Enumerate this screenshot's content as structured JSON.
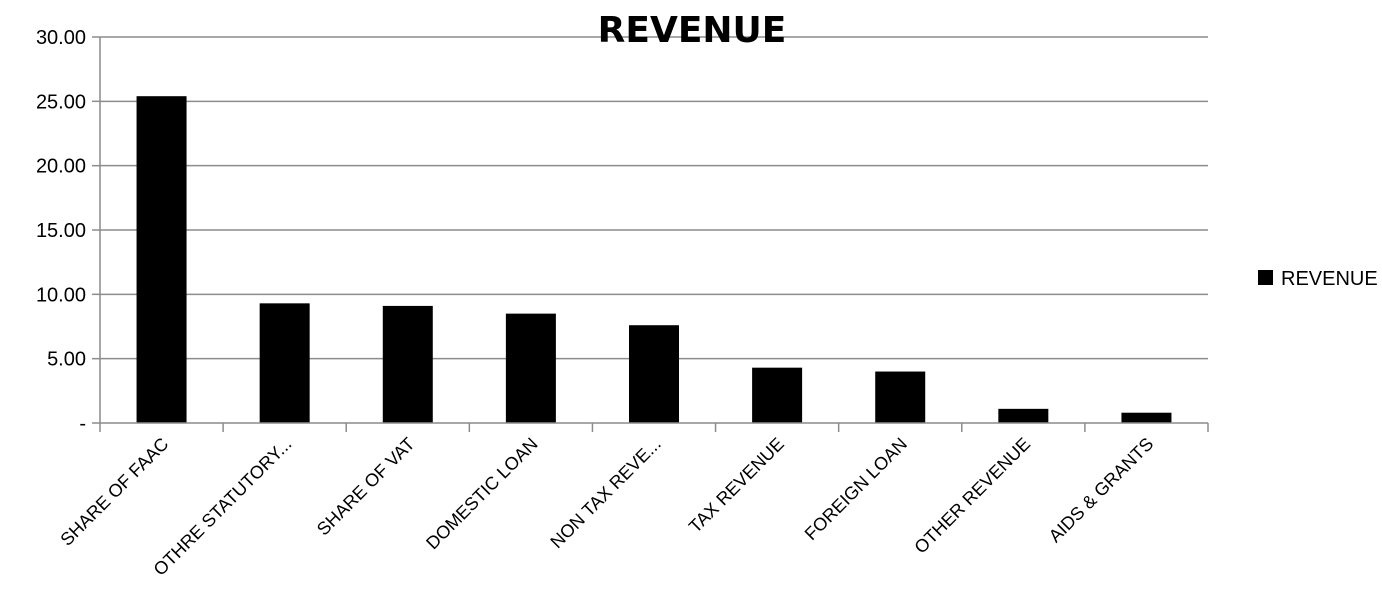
{
  "chart_data": {
    "type": "bar",
    "title": "REVENUE",
    "xlabel": "",
    "ylabel": "",
    "ylim": [
      0,
      30
    ],
    "y_ticks": [
      "-",
      "5.00",
      "10.00",
      "15.00",
      "20.00",
      "25.00",
      "30.00"
    ],
    "grid": true,
    "legend_position": "right",
    "categories": [
      "SHARE OF FAAC",
      "OTHRE STATUTORY...",
      "SHARE OF VAT",
      "DOMESTIC LOAN",
      "NON TAX REVE...",
      "TAX REVENUE",
      "FOREIGN LOAN",
      "OTHER REVENUE",
      "AIDS & GRANTS"
    ],
    "series": [
      {
        "name": "REVENUE",
        "color": "#000000",
        "values": [
          25.4,
          9.3,
          9.1,
          8.5,
          7.6,
          4.3,
          4.0,
          1.1,
          0.8
        ]
      }
    ]
  }
}
